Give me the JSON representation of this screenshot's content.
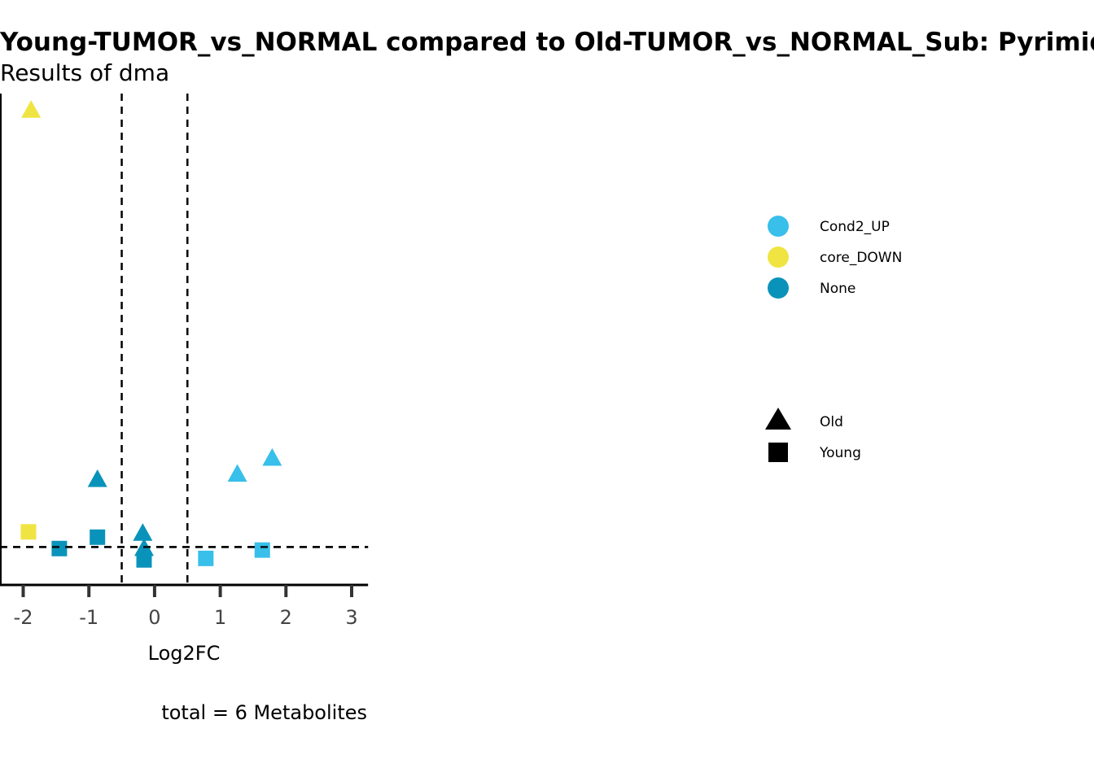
{
  "chart_data": {
    "type": "scatter",
    "title": "Young-TUMOR_vs_NORMAL compared to Old-TUMOR_vs_NORMAL_Sub: Pyrimidine metabolism",
    "subtitle": "Results of dma",
    "xlabel": "Log2FC",
    "ylabel": "",
    "caption": "total = 6 Metabolites",
    "xlim": [
      -2.35,
      3.25
    ],
    "ylim": [
      0,
      6.5
    ],
    "xticks": [
      -2,
      -1,
      0,
      1,
      2,
      3
    ],
    "xtick_labels": [
      "-2",
      "-1",
      "0",
      "1",
      "2",
      "3"
    ],
    "vlines": [
      -0.5,
      0.5
    ],
    "hline": 0.5,
    "color_legend": [
      {
        "label": "Cond2_UP",
        "color": "#38bfea"
      },
      {
        "label": "core_DOWN",
        "color": "#f0e443"
      },
      {
        "label": "None",
        "color": "#0a93ba"
      }
    ],
    "shape_legend": [
      {
        "label": "Old",
        "shape": "triangle"
      },
      {
        "label": "Young",
        "shape": "square"
      }
    ],
    "points": [
      {
        "x": -1.88,
        "y": 6.25,
        "group": "core_DOWN",
        "shape": "triangle"
      },
      {
        "x": -1.92,
        "y": 0.7,
        "group": "core_DOWN",
        "shape": "square"
      },
      {
        "x": -1.45,
        "y": 0.48,
        "group": "None",
        "shape": "square"
      },
      {
        "x": -0.87,
        "y": 1.38,
        "group": "None",
        "shape": "triangle"
      },
      {
        "x": -0.87,
        "y": 0.63,
        "group": "None",
        "shape": "square"
      },
      {
        "x": -0.18,
        "y": 0.67,
        "group": "None",
        "shape": "triangle"
      },
      {
        "x": -0.16,
        "y": 0.47,
        "group": "None",
        "shape": "triangle"
      },
      {
        "x": -0.16,
        "y": 0.33,
        "group": "None",
        "shape": "square"
      },
      {
        "x": 0.78,
        "y": 0.35,
        "group": "Cond2_UP",
        "shape": "square"
      },
      {
        "x": 1.26,
        "y": 1.45,
        "group": "Cond2_UP",
        "shape": "triangle"
      },
      {
        "x": 1.79,
        "y": 1.66,
        "group": "Cond2_UP",
        "shape": "triangle"
      },
      {
        "x": 1.64,
        "y": 0.46,
        "group": "Cond2_UP",
        "shape": "square"
      }
    ]
  }
}
